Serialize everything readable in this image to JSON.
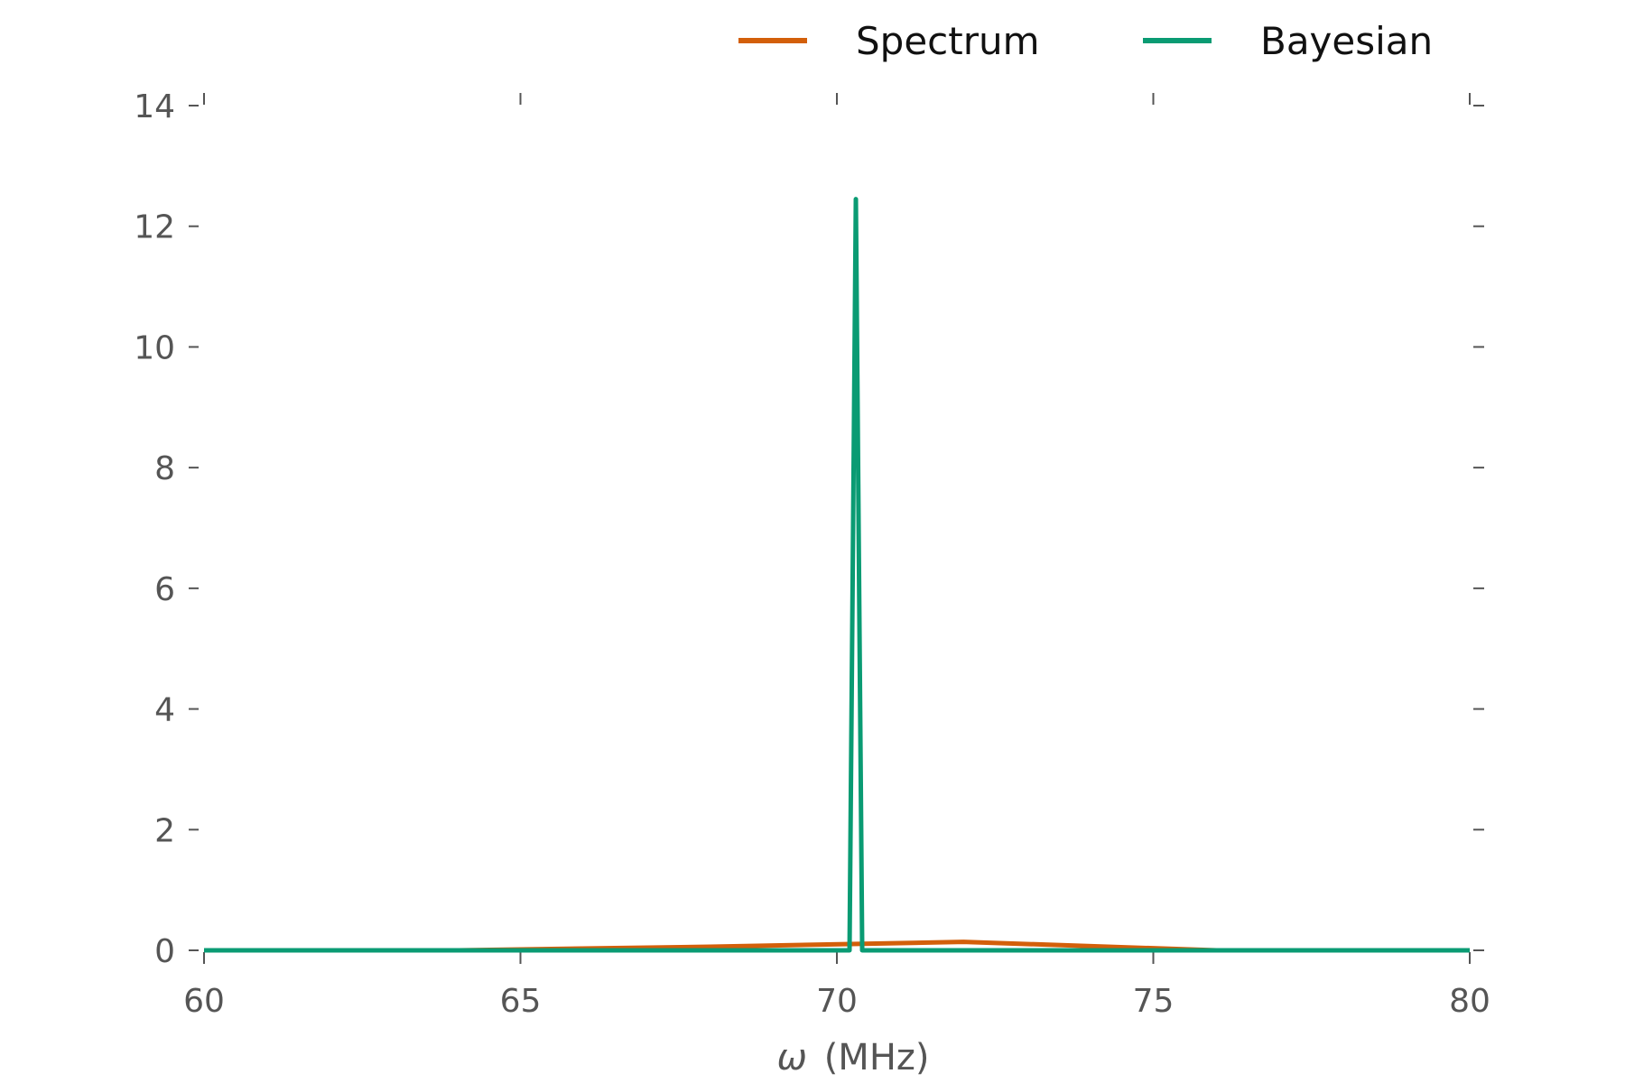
{
  "chart_data": {
    "type": "line",
    "title": "",
    "xlabel_symbol": "ω",
    "xlabel_unit": "(MHz)",
    "ylabel": "",
    "xlim": [
      60,
      80
    ],
    "ylim": [
      0,
      14
    ],
    "xticks": [
      60,
      65,
      70,
      75,
      80
    ],
    "yticks": [
      0,
      2,
      4,
      6,
      8,
      10,
      12,
      14
    ],
    "grid": false,
    "legend_position": "top-right",
    "series": [
      {
        "name": "Spectrum",
        "color": "#d35f0a",
        "x": [
          60,
          64,
          68,
          72,
          76,
          80
        ],
        "y": [
          0.0,
          0.0,
          0.06,
          0.14,
          0.0,
          0.0
        ]
      },
      {
        "name": "Bayesian",
        "color": "#0a9b73",
        "x": [
          60,
          70.2,
          70.3,
          70.4,
          80
        ],
        "y": [
          0.0,
          0.0,
          12.45,
          0.0,
          0.0
        ]
      }
    ]
  }
}
